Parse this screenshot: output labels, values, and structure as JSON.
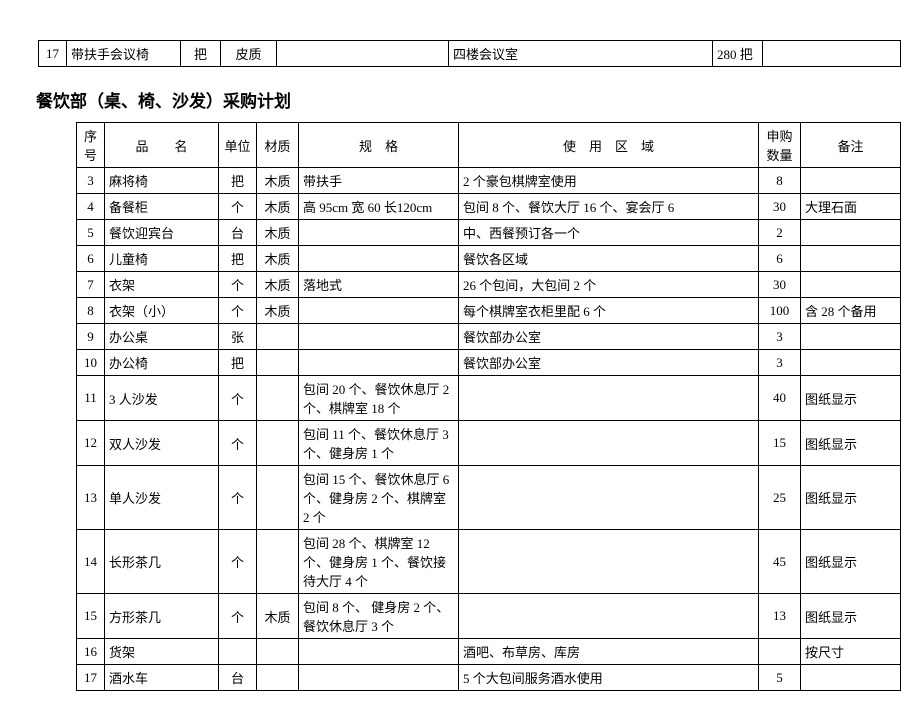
{
  "topTable": {
    "row": {
      "no": "17",
      "name": "带扶手会议椅",
      "unit": "把",
      "material": "皮质",
      "spec": "",
      "area": "四楼会议室",
      "qty": "280 把",
      "remark": ""
    }
  },
  "sectionTitle": "餐饮部（桌、椅、沙发）采购计划",
  "mainTable": {
    "columns": [
      "序号",
      "品　　名",
      "单位",
      "材质",
      "规　格",
      "使　用　区　域",
      "申购数量",
      "备注"
    ],
    "rows": [
      {
        "no": "3",
        "name": "麻将椅",
        "unit": "把",
        "material": "木质",
        "spec": "带扶手",
        "area": "2 个豪包棋牌室使用",
        "qty": "8",
        "remark": ""
      },
      {
        "no": "4",
        "name": "备餐柜",
        "unit": "个",
        "material": "木质",
        "spec": "高 95cm 宽 60 长120cm",
        "area": "包间 8 个、餐饮大厅 16 个、宴会厅 6",
        "qty": "30",
        "remark": "大理石面"
      },
      {
        "no": "5",
        "name": "餐饮迎宾台",
        "unit": "台",
        "material": "木质",
        "spec": "",
        "area": "中、西餐预订各一个",
        "qty": "2",
        "remark": ""
      },
      {
        "no": "6",
        "name": "儿童椅",
        "unit": "把",
        "material": "木质",
        "spec": "",
        "area": "餐饮各区域",
        "qty": "6",
        "remark": ""
      },
      {
        "no": "7",
        "name": "衣架",
        "unit": "个",
        "material": "木质",
        "spec": "落地式",
        "area": "26 个包间，大包间 2 个",
        "qty": "30",
        "remark": ""
      },
      {
        "no": "8",
        "name": "衣架（小）",
        "unit": "个",
        "material": "木质",
        "spec": "",
        "area": "每个棋牌室衣柜里配 6 个",
        "qty": "100",
        "remark": "含 28 个备用"
      },
      {
        "no": "9",
        "name": "办公桌",
        "unit": "张",
        "material": "",
        "spec": "",
        "area": "餐饮部办公室",
        "qty": "3",
        "remark": ""
      },
      {
        "no": "10",
        "name": "办公椅",
        "unit": "把",
        "material": "",
        "spec": "",
        "area": "餐饮部办公室",
        "qty": "3",
        "remark": ""
      },
      {
        "no": "11",
        "name": "3 人沙发",
        "unit": "个",
        "material": "",
        "spec": "包间 20 个、餐饮休息厅 2 个、棋牌室 18 个",
        "area": "",
        "qty": "40",
        "remark": "图纸显示"
      },
      {
        "no": "12",
        "name": "双人沙发",
        "unit": "个",
        "material": "",
        "spec": "包间 11 个、餐饮休息厅 3 个、健身房 1 个",
        "area": "",
        "qty": "15",
        "remark": "图纸显示"
      },
      {
        "no": "13",
        "name": "单人沙发",
        "unit": "个",
        "material": "",
        "spec": "包间 15 个、餐饮休息厅 6 个、健身房 2 个、棋牌室 2 个",
        "area": "",
        "qty": "25",
        "remark": "图纸显示"
      },
      {
        "no": "14",
        "name": "长形茶几",
        "unit": "个",
        "material": "",
        "spec": "包间 28 个、棋牌室 12 个、健身房 1 个、餐饮接待大厅 4 个",
        "area": "",
        "qty": "45",
        "remark": "图纸显示"
      },
      {
        "no": "15",
        "name": "方形茶几",
        "unit": "个",
        "material": "木质",
        "spec": "包间 8 个、 健身房 2 个、餐饮休息厅 3 个",
        "area": "",
        "qty": "13",
        "remark": "图纸显示"
      },
      {
        "no": "16",
        "name": "货架",
        "unit": "",
        "material": "",
        "spec": "",
        "area": "酒吧、布草房、库房",
        "qty": "",
        "remark": "按尺寸"
      },
      {
        "no": "17",
        "name": "酒水车",
        "unit": "台",
        "material": "",
        "spec": "",
        "area": "5 个大包间服务酒水使用",
        "qty": "5",
        "remark": ""
      }
    ]
  }
}
